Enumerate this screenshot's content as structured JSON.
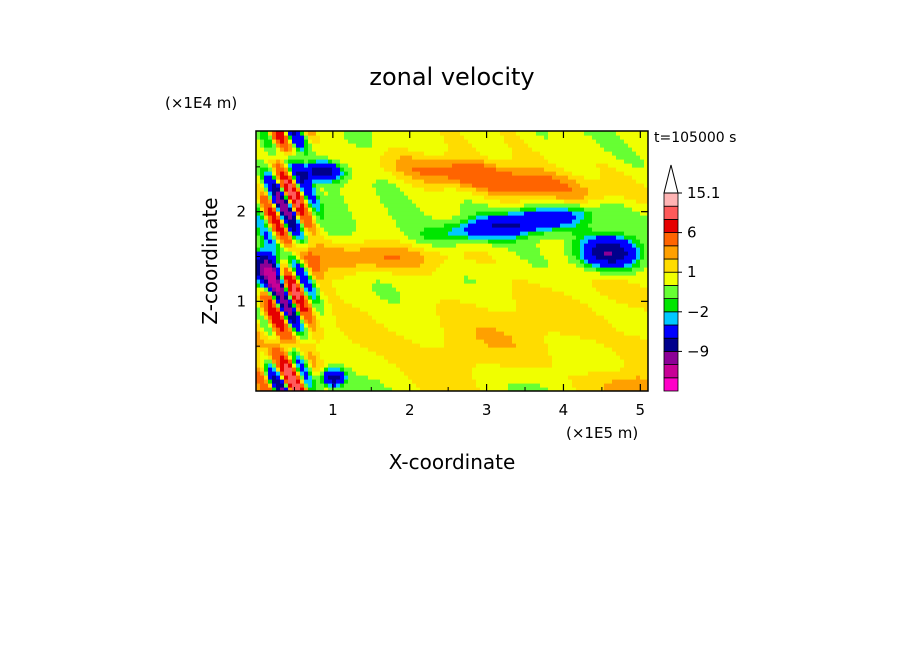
{
  "chart_data": {
    "type": "heatmap",
    "title": "zonal velocity",
    "xlabel": "X-coordinate",
    "ylabel": "Z-coordinate",
    "x_scale_label": "(×1E5 m)",
    "y_scale_label": "(×1E4 m)",
    "time_label": "t=105000 s",
    "xlim": [
      0,
      5.1
    ],
    "ylim": [
      0,
      2.9
    ],
    "x_ticks": [
      1,
      2,
      3,
      4,
      5
    ],
    "y_ticks": [
      1,
      2
    ],
    "x_tick_labels": [
      "1",
      "2",
      "3",
      "4",
      "5"
    ],
    "y_tick_labels": [
      "1",
      "2"
    ],
    "colorbar": {
      "levels": [
        -18,
        -15,
        -12,
        -9,
        -6,
        -3,
        -2,
        -1,
        0,
        1,
        2,
        3,
        6,
        9,
        12,
        15.1
      ],
      "colors": [
        "#ff00c8",
        "#c80096",
        "#8c0096",
        "#00008c",
        "#0000ff",
        "#00c8ff",
        "#00e600",
        "#66ff33",
        "#f0ff00",
        "#ffdc00",
        "#ffa000",
        "#ff6400",
        "#e60000",
        "#ff5a5a",
        "#ffb4b4"
      ],
      "tick_labels": [
        "15.1",
        "6",
        "1",
        "−2",
        "−9"
      ],
      "tick_values": [
        15.1,
        6,
        1,
        -2,
        -9
      ],
      "extend_top": true
    }
  }
}
